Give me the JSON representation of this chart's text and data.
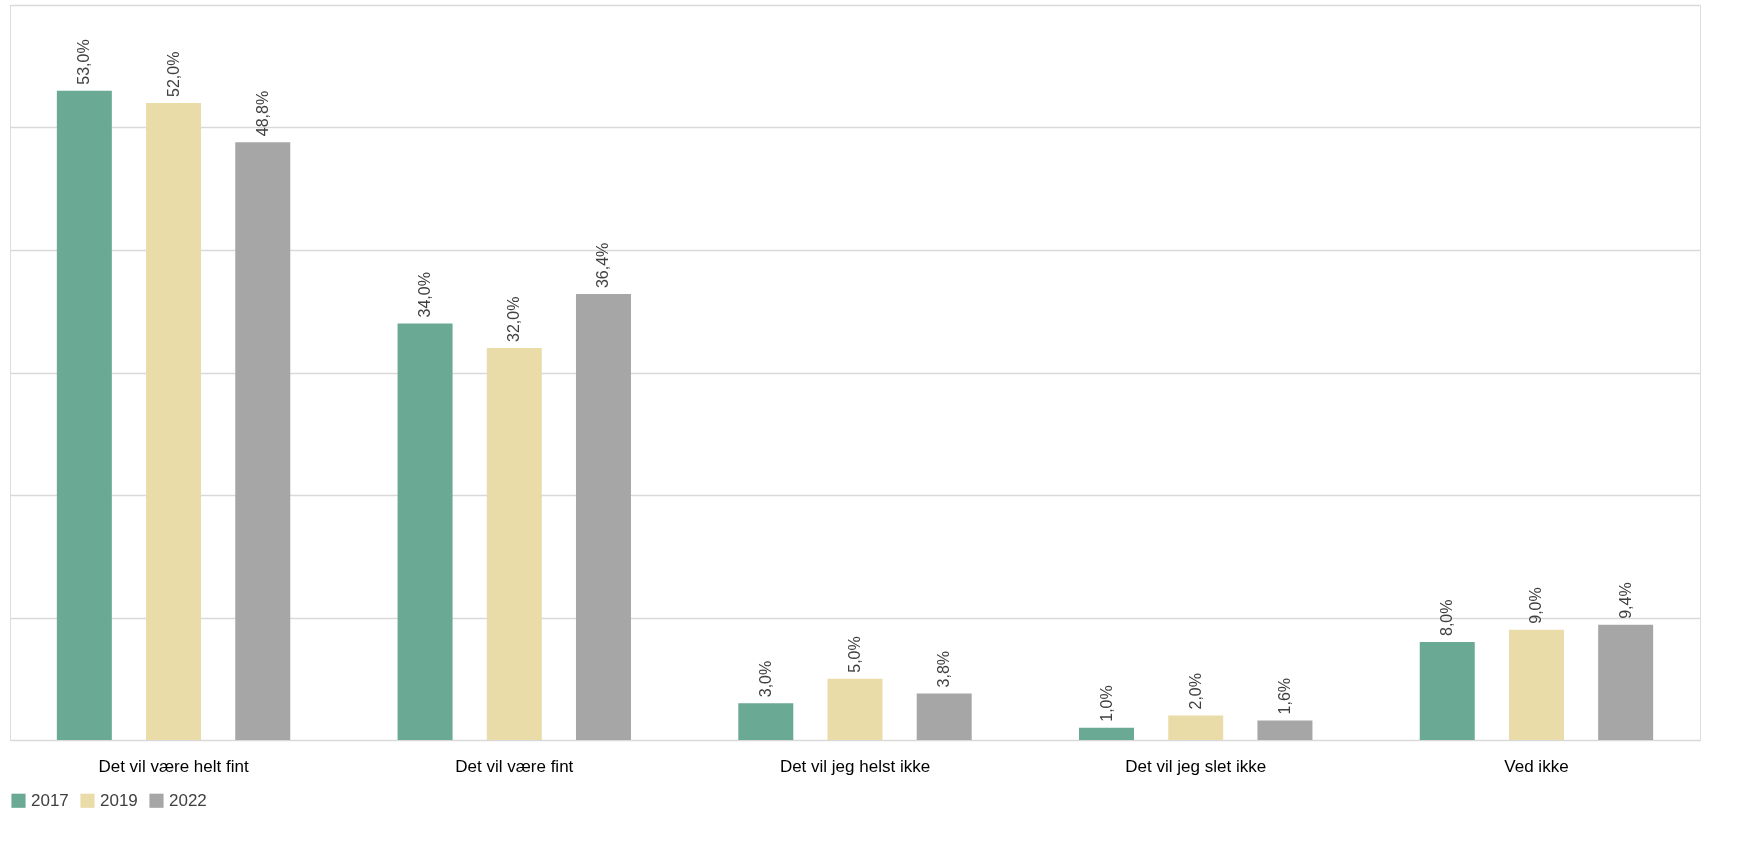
{
  "chart_data": {
    "type": "bar",
    "categories": [
      "Det vil være helt fint",
      "Det vil være fint",
      "Det vil jeg helst ikke",
      "Det vil jeg slet ikke",
      "Ved ikke"
    ],
    "series": [
      {
        "name": "2017",
        "color": "#6aa994",
        "values": [
          53.0,
          34.0,
          3.0,
          1.0,
          8.0
        ],
        "value_labels": [
          "53,0%",
          "34,0%",
          "3,0%",
          "1,0%",
          "8,0%"
        ]
      },
      {
        "name": "2019",
        "color": "#e9dca8",
        "values": [
          52.0,
          32.0,
          5.0,
          2.0,
          9.0
        ],
        "value_labels": [
          "52,0%",
          "32,0%",
          "5,0%",
          "2,0%",
          "9,0%"
        ]
      },
      {
        "name": "2022",
        "color": "#a6a6a6",
        "values": [
          48.8,
          36.4,
          3.8,
          1.6,
          9.4
        ],
        "value_labels": [
          "48,8%",
          "36,4%",
          "3,8%",
          "1,6%",
          "9,4%"
        ]
      }
    ],
    "ylim": [
      0,
      60
    ],
    "yticks": [
      {
        "value": 0,
        "label": null
      },
      {
        "value": 10,
        "label": null
      },
      {
        "value": 20,
        "label": null
      },
      {
        "value": 30,
        "label": null
      },
      {
        "value": 40,
        "label": null
      },
      {
        "value": 50,
        "label": null
      },
      {
        "value": 60,
        "label": null
      }
    ],
    "tick_labels": "x",
    "grid": "y",
    "legend": "bottom"
  }
}
